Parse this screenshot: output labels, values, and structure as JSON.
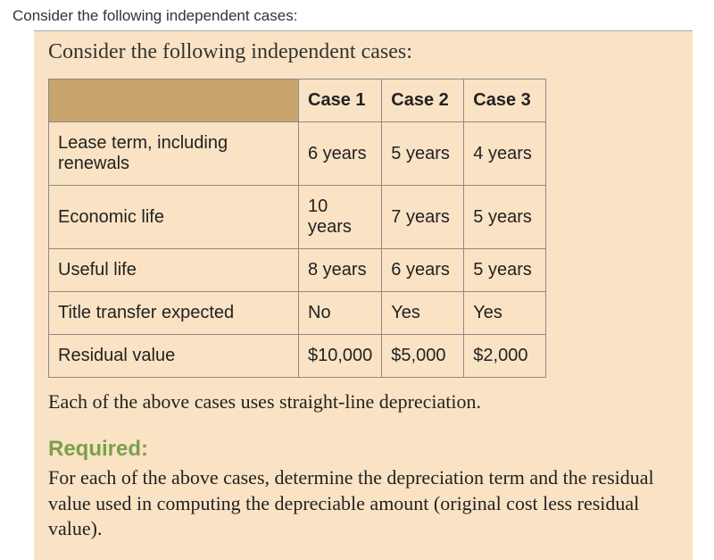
{
  "outer_title": "Consider the following independent cases:",
  "inner_title": "Consider the following independent cases:",
  "table": {
    "headers": [
      "Case 1",
      "Case 2",
      "Case 3"
    ],
    "rows": [
      {
        "label": "Lease term, including renewals",
        "c1": "6 years",
        "c2": "5 years",
        "c3": "4 years"
      },
      {
        "label": "Economic life",
        "c1": "10 years",
        "c2": "7 years",
        "c3": "5 years"
      },
      {
        "label": "Useful life",
        "c1": "8 years",
        "c2": "6 years",
        "c3": "5 years"
      },
      {
        "label": "Title transfer expected",
        "c1": "No",
        "c2": "Yes",
        "c3": "Yes"
      },
      {
        "label": "Residual value",
        "c1": "$10,000",
        "c2": "$5,000",
        "c3": "$2,000"
      }
    ]
  },
  "note": "Each of the above cases uses straight-line depreciation.",
  "required_label": "Required:",
  "required_text": "For each of the above cases, determine the depreciation term and the residual value used in computing the depreciable amount (original cost less residual value).",
  "colors": {
    "box_bg": "#fae3c4",
    "corner_bg": "#c9a56e",
    "border": "#8a8a8a",
    "required_green": "#7ba04a"
  }
}
